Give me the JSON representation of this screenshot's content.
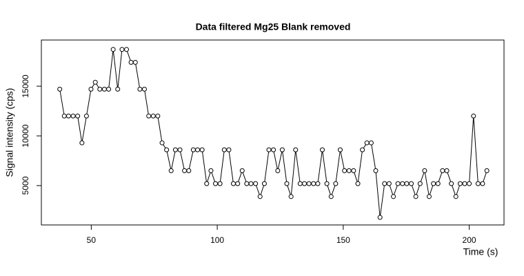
{
  "chart_data": {
    "type": "line",
    "title": "Data filtered Mg25 Blank removed",
    "x_label": "Time (s)",
    "y_label": "Signal intensity (cps)",
    "x": [
      37.5,
      39.3,
      41.0,
      42.8,
      44.6,
      46.3,
      48.1,
      49.9,
      51.6,
      53.4,
      55.2,
      56.9,
      58.7,
      60.5,
      62.2,
      64.0,
      65.8,
      67.5,
      69.3,
      71.1,
      72.8,
      74.6,
      76.4,
      78.1,
      79.9,
      81.7,
      83.4,
      85.2,
      87.0,
      88.7,
      90.5,
      92.2,
      94.0,
      95.8,
      97.5,
      99.3,
      101.1,
      102.8,
      104.6,
      106.4,
      108.1,
      109.9,
      111.7,
      113.4,
      115.2,
      117.0,
      118.7,
      120.5,
      122.3,
      124.0,
      125.8,
      127.6,
      129.3,
      131.1,
      132.9,
      134.6,
      136.4,
      138.2,
      139.9,
      141.7,
      143.5,
      145.2,
      147.0,
      148.8,
      150.5,
      152.3,
      154.1,
      155.8,
      157.6,
      159.4,
      161.1,
      162.9,
      164.6,
      166.4,
      168.2,
      169.9,
      171.7,
      173.5,
      175.2,
      177.0,
      178.8,
      180.5,
      182.3,
      184.1,
      185.8,
      187.6,
      189.4,
      191.1,
      192.9,
      194.7,
      196.4,
      198.2,
      200.0,
      201.7,
      203.5,
      205.3,
      207.0
    ],
    "series": [
      {
        "name": "Mg25",
        "color": "#000000",
        "values": [
          14700,
          12000,
          12000,
          12000,
          12000,
          9300,
          12000,
          14700,
          15400,
          14700,
          14700,
          14700,
          18700,
          14700,
          18700,
          18700,
          17400,
          17400,
          14700,
          14700,
          12000,
          12000,
          12000,
          9300,
          8600,
          6500,
          8600,
          8600,
          6500,
          6500,
          8600,
          8600,
          8600,
          5200,
          6500,
          5200,
          5200,
          8600,
          8600,
          5200,
          5200,
          6500,
          5200,
          5200,
          5200,
          3900,
          5200,
          8600,
          8600,
          6500,
          8600,
          5200,
          3900,
          8600,
          5200,
          5200,
          5200,
          5200,
          5200,
          8600,
          5200,
          3900,
          5200,
          8600,
          6500,
          6500,
          6500,
          5200,
          8600,
          9300,
          9300,
          6500,
          1800,
          5200,
          5200,
          3900,
          5200,
          5200,
          5200,
          5200,
          3900,
          5200,
          6500,
          3900,
          5200,
          5200,
          6500,
          6500,
          5200,
          3900,
          5200,
          5200,
          5200,
          12000,
          5200,
          5200,
          6500
        ]
      }
    ],
    "xlim": [
      30.2,
      213.8
    ],
    "ylim": [
      1040,
      19650
    ],
    "xticks": [
      50,
      100,
      150,
      200
    ],
    "yticks": [
      5000,
      10000,
      15000
    ]
  }
}
